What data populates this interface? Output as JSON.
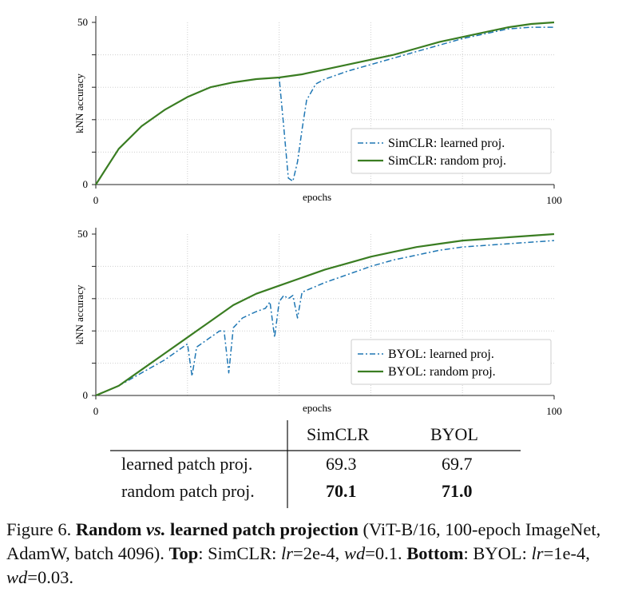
{
  "chart_data": [
    {
      "type": "line",
      "xlabel": "epochs",
      "ylabel": "kNN accuracy",
      "xlim": [
        0,
        100
      ],
      "ylim": [
        0,
        50
      ],
      "x_ticks": [
        "0",
        "100"
      ],
      "y_ticks": [
        "0",
        "50"
      ],
      "legend_position": "bottom-right",
      "grid": true,
      "series": [
        {
          "name": "SimCLR: learned proj.",
          "style": "dash-dot",
          "color": "#1f77b4",
          "x": [
            0,
            5,
            10,
            15,
            20,
            25,
            30,
            35,
            40,
            41,
            42,
            43,
            44,
            45,
            46,
            48,
            50,
            55,
            60,
            65,
            70,
            75,
            80,
            85,
            90,
            95,
            100
          ],
          "y": [
            0,
            11,
            18,
            23,
            27,
            30,
            31.5,
            32.5,
            33,
            18,
            2,
            1,
            7,
            17,
            26,
            31,
            32.5,
            35,
            37,
            39,
            41,
            43,
            45,
            46.5,
            48,
            48.5,
            48.5
          ]
        },
        {
          "name": "SimCLR: random proj.",
          "style": "solid",
          "color": "#3a7d22",
          "x": [
            0,
            5,
            10,
            15,
            20,
            25,
            30,
            35,
            40,
            45,
            50,
            55,
            60,
            65,
            70,
            75,
            80,
            85,
            90,
            95,
            100
          ],
          "y": [
            0,
            11,
            18,
            23,
            27,
            30,
            31.5,
            32.5,
            33,
            34,
            35.5,
            37,
            38.5,
            40,
            42,
            44,
            45.5,
            47,
            48.5,
            49.5,
            50
          ]
        }
      ]
    },
    {
      "type": "line",
      "xlabel": "epochs",
      "ylabel": "kNN accuracy",
      "xlim": [
        0,
        100
      ],
      "ylim": [
        0,
        50
      ],
      "x_ticks": [
        "0",
        "100"
      ],
      "y_ticks": [
        "0",
        "50"
      ],
      "legend_position": "bottom-right",
      "grid": true,
      "series": [
        {
          "name": "BYOL: learned proj.",
          "style": "dash-dot",
          "color": "#1f77b4",
          "x": [
            0,
            5,
            10,
            15,
            19,
            20,
            21,
            22,
            25,
            27,
            28,
            29,
            30,
            32,
            35,
            37,
            38,
            39,
            40,
            41,
            42,
            43,
            44,
            45,
            50,
            55,
            60,
            65,
            70,
            75,
            80,
            85,
            90,
            95,
            100
          ],
          "y": [
            0,
            3,
            7,
            11,
            15,
            16,
            6,
            15,
            18,
            20,
            20,
            7,
            21,
            24,
            26,
            27,
            29,
            18,
            29,
            31,
            30,
            31,
            24,
            32,
            35,
            37.5,
            40,
            42,
            43.5,
            45,
            46,
            46.5,
            47,
            47.5,
            48
          ]
        },
        {
          "name": "BYOL: random proj.",
          "style": "solid",
          "color": "#3a7d22",
          "x": [
            0,
            5,
            10,
            15,
            20,
            25,
            30,
            35,
            40,
            45,
            50,
            55,
            60,
            65,
            70,
            75,
            80,
            85,
            90,
            95,
            100
          ],
          "y": [
            0,
            3,
            8,
            13,
            18,
            23,
            28,
            31.5,
            34,
            36.5,
            39,
            41,
            43,
            44.5,
            46,
            47,
            48,
            48.5,
            49,
            49.5,
            50
          ]
        }
      ]
    }
  ],
  "table": {
    "headers": [
      "SimCLR",
      "BYOL"
    ],
    "rows": [
      {
        "label": "learned patch proj.",
        "simclr": "69.3",
        "byol": "69.7"
      },
      {
        "label": "random patch proj.",
        "simclr": "70.1",
        "byol": "71.0"
      }
    ]
  },
  "caption": {
    "fig_label": "Figure 6.",
    "bold1": "Random",
    "vs": "vs.",
    "bold2": "learned patch projection",
    "text1": "(ViT-B/16, 100-epoch ImageNet, AdamW, batch 4096).",
    "top_label": "Top",
    "top_text": ": SimCLR: ",
    "lr_var": "lr",
    "top_lr": "=2e-4,",
    "wd_var": "wd",
    "top_wd": "=0.1.",
    "bottom_label": "Bottom",
    "bottom_text": ": BYOL: ",
    "bottom_lr": "=1e-4, ",
    "bottom_wd": "=0.03."
  }
}
